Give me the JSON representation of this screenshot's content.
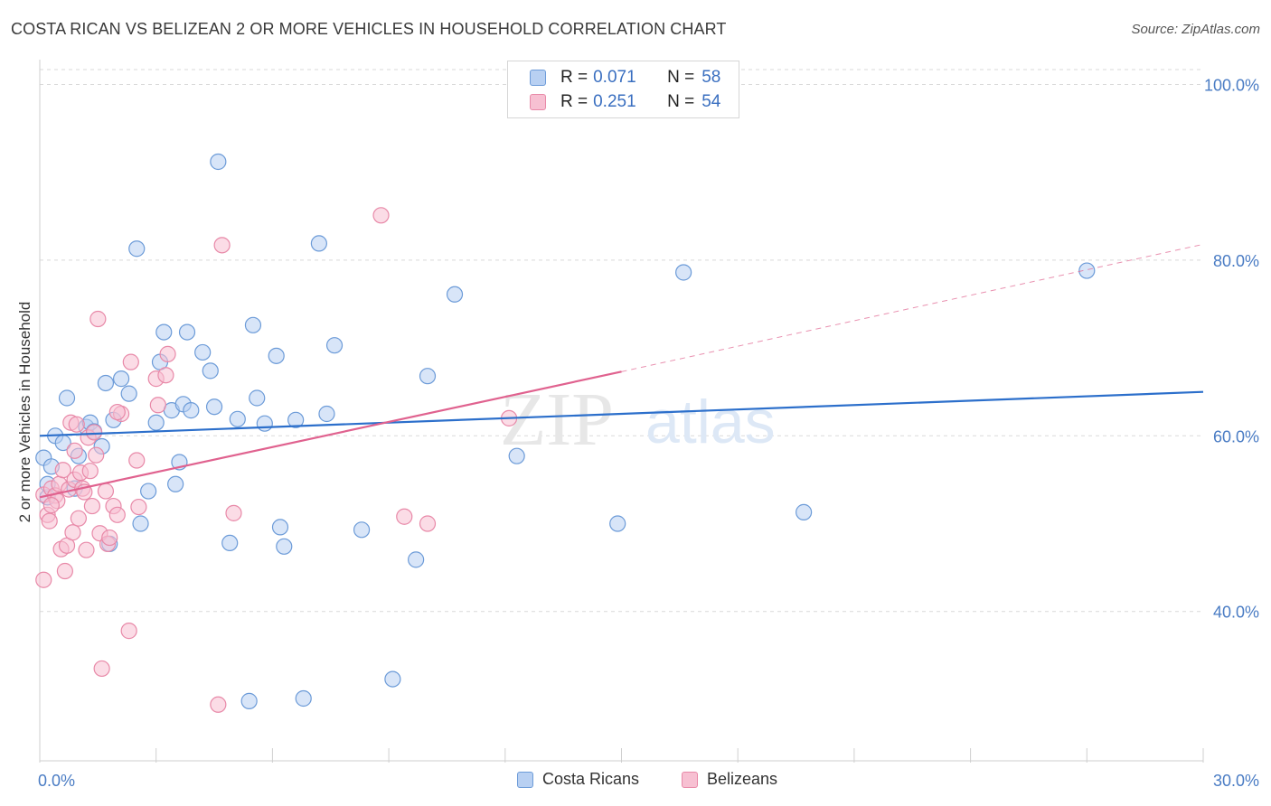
{
  "title": "COSTA RICAN VS BELIZEAN 2 OR MORE VEHICLES IN HOUSEHOLD CORRELATION CHART",
  "source": "Source: ZipAtlas.com",
  "watermark": {
    "zip": "ZIP",
    "atlas": "atlas"
  },
  "legend": {
    "rows": [
      {
        "r_label": "R =",
        "r_value": "0.071",
        "n_label": "N =",
        "n_value": "58"
      },
      {
        "r_label": "R =",
        "r_value": "0.251",
        "n_label": "N =",
        "n_value": "54"
      }
    ]
  },
  "bottom_legend": [
    "Costa Ricans",
    "Belizeans"
  ],
  "colors": {
    "blue_fill": "#b8d0f2",
    "blue_stroke": "#6c9bd8",
    "blue_line": "#2c6fcb",
    "pink_fill": "#f7c0d2",
    "pink_stroke": "#e889a8",
    "pink_line": "#e0628f",
    "tick_label": "#4a7cc4",
    "grid": "#d9d9d9"
  },
  "chart_data": {
    "type": "scatter",
    "title": "COSTA RICAN VS BELIZEAN 2 OR MORE VEHICLES IN HOUSEHOLD CORRELATION CHART",
    "xlabel": "",
    "ylabel": "2 or more Vehicles in Household",
    "xlim": [
      0,
      30
    ],
    "ylim": [
      23,
      102
    ],
    "x_tick_labels": [
      "0.0%",
      "30.0%"
    ],
    "y_ticks": [
      40,
      60,
      80,
      100
    ],
    "y_tick_labels": [
      "40.0%",
      "60.0%",
      "80.0%",
      "100.0%"
    ],
    "grid": true,
    "legend_position": "top-center",
    "series": [
      {
        "name": "Costa Ricans",
        "r": 0.071,
        "n": 58,
        "trend": {
          "x": [
            0,
            30
          ],
          "y": [
            60.0,
            65.0
          ]
        },
        "points": [
          [
            0.1,
            57.5
          ],
          [
            0.2,
            53.0
          ],
          [
            0.3,
            56.5
          ],
          [
            0.4,
            60.0
          ],
          [
            0.6,
            59.2
          ],
          [
            0.7,
            64.3
          ],
          [
            0.9,
            54.0
          ],
          [
            1.0,
            57.7
          ],
          [
            1.2,
            61.0
          ],
          [
            1.3,
            61.5
          ],
          [
            1.4,
            60.5
          ],
          [
            1.6,
            58.8
          ],
          [
            1.7,
            66.0
          ],
          [
            1.8,
            47.7
          ],
          [
            1.9,
            61.8
          ],
          [
            2.1,
            66.5
          ],
          [
            2.3,
            64.8
          ],
          [
            2.5,
            81.3
          ],
          [
            2.6,
            50.0
          ],
          [
            2.8,
            53.7
          ],
          [
            3.0,
            61.5
          ],
          [
            3.1,
            68.4
          ],
          [
            3.2,
            71.8
          ],
          [
            3.4,
            62.9
          ],
          [
            3.5,
            54.5
          ],
          [
            3.6,
            57.0
          ],
          [
            3.7,
            63.6
          ],
          [
            3.8,
            71.8
          ],
          [
            3.9,
            62.9
          ],
          [
            4.2,
            69.5
          ],
          [
            4.4,
            67.4
          ],
          [
            4.5,
            63.3
          ],
          [
            4.6,
            91.2
          ],
          [
            4.9,
            47.8
          ],
          [
            5.1,
            61.9
          ],
          [
            5.4,
            29.8
          ],
          [
            5.5,
            72.6
          ],
          [
            5.6,
            64.3
          ],
          [
            5.8,
            61.4
          ],
          [
            6.1,
            69.1
          ],
          [
            6.2,
            49.6
          ],
          [
            6.3,
            47.4
          ],
          [
            6.6,
            61.8
          ],
          [
            6.8,
            30.1
          ],
          [
            7.2,
            81.9
          ],
          [
            7.4,
            62.5
          ],
          [
            7.6,
            70.3
          ],
          [
            8.3,
            49.3
          ],
          [
            9.1,
            32.3
          ],
          [
            9.7,
            45.9
          ],
          [
            10.0,
            66.8
          ],
          [
            10.7,
            76.1
          ],
          [
            12.3,
            57.7
          ],
          [
            14.9,
            50.0
          ],
          [
            16.6,
            78.6
          ],
          [
            19.7,
            51.3
          ],
          [
            27.0,
            78.8
          ],
          [
            0.2,
            54.5
          ]
        ]
      },
      {
        "name": "Belizeans",
        "r": 0.251,
        "n": 54,
        "trend": {
          "x": [
            0,
            15
          ],
          "y": [
            53.0,
            67.3
          ]
        },
        "trend_dashed": {
          "x": [
            15,
            30
          ],
          "y": [
            67.3,
            81.8
          ]
        },
        "points": [
          [
            0.1,
            53.3
          ],
          [
            0.1,
            43.6
          ],
          [
            0.2,
            51.0
          ],
          [
            0.25,
            50.3
          ],
          [
            0.3,
            54.0
          ],
          [
            0.4,
            53.2
          ],
          [
            0.45,
            52.6
          ],
          [
            0.5,
            54.5
          ],
          [
            0.55,
            47.1
          ],
          [
            0.6,
            56.1
          ],
          [
            0.65,
            44.6
          ],
          [
            0.7,
            47.5
          ],
          [
            0.75,
            53.9
          ],
          [
            0.8,
            61.5
          ],
          [
            0.85,
            49.0
          ],
          [
            0.9,
            55.0
          ],
          [
            0.95,
            61.3
          ],
          [
            1.0,
            50.6
          ],
          [
            1.05,
            55.8
          ],
          [
            1.1,
            54.0
          ],
          [
            1.15,
            53.6
          ],
          [
            1.2,
            47.0
          ],
          [
            1.25,
            59.8
          ],
          [
            1.3,
            56.0
          ],
          [
            1.4,
            60.4
          ],
          [
            1.45,
            57.8
          ],
          [
            1.5,
            73.3
          ],
          [
            1.55,
            48.9
          ],
          [
            1.6,
            33.5
          ],
          [
            1.7,
            53.7
          ],
          [
            1.75,
            47.7
          ],
          [
            1.8,
            48.4
          ],
          [
            1.9,
            52.0
          ],
          [
            2.0,
            51.0
          ],
          [
            2.1,
            62.5
          ],
          [
            2.3,
            37.8
          ],
          [
            2.35,
            68.4
          ],
          [
            2.5,
            57.2
          ],
          [
            2.55,
            51.9
          ],
          [
            3.0,
            66.5
          ],
          [
            3.05,
            63.5
          ],
          [
            3.25,
            66.9
          ],
          [
            3.3,
            69.3
          ],
          [
            4.6,
            29.4
          ],
          [
            4.7,
            81.7
          ],
          [
            5.0,
            51.2
          ],
          [
            8.8,
            85.1
          ],
          [
            9.4,
            50.8
          ],
          [
            10.0,
            50.0
          ],
          [
            12.1,
            62.0
          ],
          [
            0.3,
            52.1
          ],
          [
            0.9,
            58.3
          ],
          [
            1.35,
            52.0
          ],
          [
            2.0,
            62.7
          ]
        ]
      }
    ]
  }
}
